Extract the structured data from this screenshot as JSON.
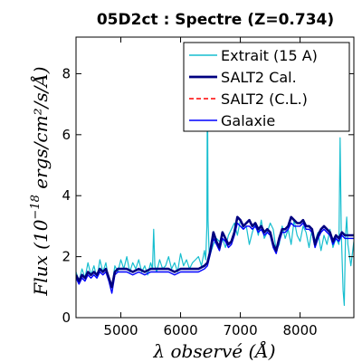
{
  "chart_data": {
    "type": "line",
    "title": "05D2ct : Spectre (Z=0.734)",
    "xlabel": "λ observé (Å)",
    "ylabel": "Flux (10",
    "ylabel_exp": "−18",
    "ylabel_units": " ergs/cm²/s/Å)",
    "xlim": [
      4250,
      8900
    ],
    "ylim": [
      0,
      9.2
    ],
    "xticks": [
      5000,
      6000,
      7000,
      8000
    ],
    "yticks": [
      0,
      2,
      4,
      6,
      8
    ],
    "legend_position": "top-right",
    "grid": false,
    "series": [
      {
        "name": "Extrait (15 A)",
        "color": "#17becf",
        "style": "thin",
        "points": [
          [
            4250,
            1.5
          ],
          [
            4300,
            1.2
          ],
          [
            4350,
            1.6
          ],
          [
            4400,
            1.3
          ],
          [
            4450,
            1.8
          ],
          [
            4500,
            1.4
          ],
          [
            4550,
            1.7
          ],
          [
            4600,
            1.3
          ],
          [
            4650,
            1.9
          ],
          [
            4700,
            1.5
          ],
          [
            4750,
            1.8
          ],
          [
            4800,
            1.2
          ],
          [
            4850,
            1.0
          ],
          [
            4900,
            1.7
          ],
          [
            4950,
            1.5
          ],
          [
            5000,
            1.9
          ],
          [
            5050,
            1.6
          ],
          [
            5100,
            2.0
          ],
          [
            5150,
            1.5
          ],
          [
            5200,
            1.8
          ],
          [
            5250,
            1.6
          ],
          [
            5300,
            1.9
          ],
          [
            5350,
            1.5
          ],
          [
            5400,
            1.7
          ],
          [
            5450,
            1.4
          ],
          [
            5500,
            1.8
          ],
          [
            5530,
            1.6
          ],
          [
            5550,
            2.9
          ],
          [
            5570,
            1.7
          ],
          [
            5600,
            1.5
          ],
          [
            5650,
            1.9
          ],
          [
            5700,
            1.6
          ],
          [
            5750,
            1.7
          ],
          [
            5800,
            2.0
          ],
          [
            5850,
            1.6
          ],
          [
            5900,
            1.8
          ],
          [
            5950,
            1.5
          ],
          [
            6000,
            2.1
          ],
          [
            6050,
            1.7
          ],
          [
            6100,
            1.9
          ],
          [
            6150,
            1.6
          ],
          [
            6200,
            1.8
          ],
          [
            6250,
            1.9
          ],
          [
            6300,
            2.0
          ],
          [
            6350,
            1.7
          ],
          [
            6400,
            2.2
          ],
          [
            6420,
            1.9
          ],
          [
            6440,
            3.0
          ],
          [
            6450,
            8.3
          ],
          [
            6460,
            3.2
          ],
          [
            6480,
            2.0
          ],
          [
            6500,
            2.1
          ],
          [
            6550,
            2.4
          ],
          [
            6600,
            2.6
          ],
          [
            6650,
            2.5
          ],
          [
            6700,
            2.6
          ],
          [
            6750,
            2.3
          ],
          [
            6800,
            2.7
          ],
          [
            6850,
            2.9
          ],
          [
            6900,
            3.1
          ],
          [
            6950,
            2.7
          ],
          [
            7000,
            3.2
          ],
          [
            7050,
            2.9
          ],
          [
            7100,
            3.0
          ],
          [
            7150,
            2.4
          ],
          [
            7200,
            2.8
          ],
          [
            7250,
            3.1
          ],
          [
            7300,
            2.7
          ],
          [
            7350,
            3.2
          ],
          [
            7400,
            2.6
          ],
          [
            7450,
            2.8
          ],
          [
            7500,
            3.1
          ],
          [
            7550,
            2.9
          ],
          [
            7600,
            2.2
          ],
          [
            7650,
            2.4
          ],
          [
            7700,
            3.0
          ],
          [
            7750,
            2.6
          ],
          [
            7800,
            2.9
          ],
          [
            7850,
            2.4
          ],
          [
            7900,
            3.2
          ],
          [
            7950,
            2.7
          ],
          [
            8000,
            2.5
          ],
          [
            8050,
            3.0
          ],
          [
            8100,
            2.8
          ],
          [
            8150,
            2.3
          ],
          [
            8200,
            2.9
          ],
          [
            8250,
            2.5
          ],
          [
            8300,
            2.8
          ],
          [
            8350,
            2.2
          ],
          [
            8400,
            2.7
          ],
          [
            8450,
            2.4
          ],
          [
            8500,
            2.9
          ],
          [
            8550,
            2.3
          ],
          [
            8600,
            2.6
          ],
          [
            8650,
            2.4
          ],
          [
            8670,
            5.9
          ],
          [
            8690,
            2.8
          ],
          [
            8720,
            0.9
          ],
          [
            8740,
            0.4
          ],
          [
            8760,
            2.7
          ],
          [
            8780,
            3.3
          ],
          [
            8800,
            2.4
          ],
          [
            8850,
            1.7
          ],
          [
            8900,
            2.5
          ]
        ]
      },
      {
        "name": "SALT2 Cal.",
        "color": "#000080",
        "style": "thick",
        "points": [
          [
            4250,
            1.4
          ],
          [
            4300,
            1.2
          ],
          [
            4350,
            1.4
          ],
          [
            4400,
            1.3
          ],
          [
            4450,
            1.5
          ],
          [
            4500,
            1.4
          ],
          [
            4550,
            1.5
          ],
          [
            4600,
            1.4
          ],
          [
            4650,
            1.6
          ],
          [
            4700,
            1.5
          ],
          [
            4750,
            1.6
          ],
          [
            4800,
            1.3
          ],
          [
            4850,
            1.0
          ],
          [
            4900,
            1.5
          ],
          [
            4950,
            1.6
          ],
          [
            5000,
            1.6
          ],
          [
            5100,
            1.6
          ],
          [
            5200,
            1.5
          ],
          [
            5300,
            1.6
          ],
          [
            5400,
            1.5
          ],
          [
            5500,
            1.6
          ],
          [
            5600,
            1.6
          ],
          [
            5700,
            1.6
          ],
          [
            5800,
            1.6
          ],
          [
            5900,
            1.5
          ],
          [
            6000,
            1.6
          ],
          [
            6100,
            1.6
          ],
          [
            6200,
            1.6
          ],
          [
            6300,
            1.6
          ],
          [
            6400,
            1.7
          ],
          [
            6450,
            1.8
          ],
          [
            6500,
            2.2
          ],
          [
            6550,
            2.8
          ],
          [
            6600,
            2.5
          ],
          [
            6650,
            2.3
          ],
          [
            6700,
            2.8
          ],
          [
            6750,
            2.6
          ],
          [
            6800,
            2.4
          ],
          [
            6850,
            2.5
          ],
          [
            6900,
            2.8
          ],
          [
            6950,
            3.3
          ],
          [
            7000,
            3.2
          ],
          [
            7050,
            3.0
          ],
          [
            7100,
            3.1
          ],
          [
            7150,
            3.2
          ],
          [
            7200,
            3.0
          ],
          [
            7250,
            3.1
          ],
          [
            7300,
            2.9
          ],
          [
            7350,
            3.0
          ],
          [
            7400,
            2.8
          ],
          [
            7450,
            2.9
          ],
          [
            7500,
            2.8
          ],
          [
            7550,
            2.4
          ],
          [
            7600,
            2.2
          ],
          [
            7650,
            2.6
          ],
          [
            7700,
            2.9
          ],
          [
            7750,
            2.9
          ],
          [
            7800,
            3.0
          ],
          [
            7850,
            3.3
          ],
          [
            7900,
            3.2
          ],
          [
            7950,
            3.1
          ],
          [
            8000,
            3.1
          ],
          [
            8050,
            3.2
          ],
          [
            8100,
            3.0
          ],
          [
            8150,
            3.0
          ],
          [
            8200,
            2.9
          ],
          [
            8250,
            2.4
          ],
          [
            8300,
            2.7
          ],
          [
            8350,
            2.9
          ],
          [
            8400,
            3.0
          ],
          [
            8450,
            2.9
          ],
          [
            8500,
            2.8
          ],
          [
            8550,
            2.5
          ],
          [
            8600,
            2.7
          ],
          [
            8650,
            2.6
          ],
          [
            8700,
            2.8
          ],
          [
            8750,
            2.7
          ],
          [
            8800,
            2.7
          ],
          [
            8850,
            2.7
          ],
          [
            8900,
            2.7
          ]
        ]
      },
      {
        "name": "SALT2 (C.L.)",
        "color": "#ff0000",
        "style": "dashed",
        "points": []
      },
      {
        "name": "Galaxie",
        "color": "#0000ff",
        "style": "medium",
        "points": [
          [
            4250,
            1.3
          ],
          [
            4300,
            1.1
          ],
          [
            4350,
            1.3
          ],
          [
            4400,
            1.2
          ],
          [
            4450,
            1.4
          ],
          [
            4500,
            1.3
          ],
          [
            4550,
            1.4
          ],
          [
            4600,
            1.3
          ],
          [
            4650,
            1.5
          ],
          [
            4700,
            1.4
          ],
          [
            4750,
            1.5
          ],
          [
            4800,
            1.2
          ],
          [
            4850,
            0.8
          ],
          [
            4900,
            1.4
          ],
          [
            4950,
            1.5
          ],
          [
            5000,
            1.5
          ],
          [
            5100,
            1.5
          ],
          [
            5200,
            1.4
          ],
          [
            5300,
            1.5
          ],
          [
            5400,
            1.4
          ],
          [
            5500,
            1.5
          ],
          [
            5600,
            1.5
          ],
          [
            5700,
            1.5
          ],
          [
            5800,
            1.5
          ],
          [
            5900,
            1.4
          ],
          [
            6000,
            1.5
          ],
          [
            6100,
            1.5
          ],
          [
            6200,
            1.5
          ],
          [
            6300,
            1.5
          ],
          [
            6400,
            1.6
          ],
          [
            6450,
            1.7
          ],
          [
            6500,
            2.1
          ],
          [
            6550,
            2.6
          ],
          [
            6600,
            2.4
          ],
          [
            6650,
            2.2
          ],
          [
            6700,
            2.6
          ],
          [
            6750,
            2.5
          ],
          [
            6800,
            2.3
          ],
          [
            6850,
            2.4
          ],
          [
            6900,
            2.7
          ],
          [
            6950,
            3.1
          ],
          [
            7000,
            3.0
          ],
          [
            7050,
            2.9
          ],
          [
            7100,
            3.0
          ],
          [
            7150,
            3.0
          ],
          [
            7200,
            2.9
          ],
          [
            7250,
            3.0
          ],
          [
            7300,
            2.8
          ],
          [
            7350,
            2.9
          ],
          [
            7400,
            2.7
          ],
          [
            7450,
            2.8
          ],
          [
            7500,
            2.7
          ],
          [
            7550,
            2.3
          ],
          [
            7600,
            2.1
          ],
          [
            7650,
            2.5
          ],
          [
            7700,
            2.8
          ],
          [
            7750,
            2.8
          ],
          [
            7800,
            2.9
          ],
          [
            7850,
            3.1
          ],
          [
            7900,
            3.0
          ],
          [
            7950,
            3.0
          ],
          [
            8000,
            3.0
          ],
          [
            8050,
            3.1
          ],
          [
            8100,
            2.9
          ],
          [
            8150,
            2.9
          ],
          [
            8200,
            2.8
          ],
          [
            8250,
            2.3
          ],
          [
            8300,
            2.6
          ],
          [
            8350,
            2.8
          ],
          [
            8400,
            2.9
          ],
          [
            8450,
            2.8
          ],
          [
            8500,
            2.7
          ],
          [
            8550,
            2.4
          ],
          [
            8600,
            2.6
          ],
          [
            8650,
            2.5
          ],
          [
            8700,
            2.7
          ],
          [
            8750,
            2.6
          ],
          [
            8800,
            2.6
          ],
          [
            8850,
            2.6
          ],
          [
            8900,
            2.6
          ]
        ]
      }
    ]
  }
}
